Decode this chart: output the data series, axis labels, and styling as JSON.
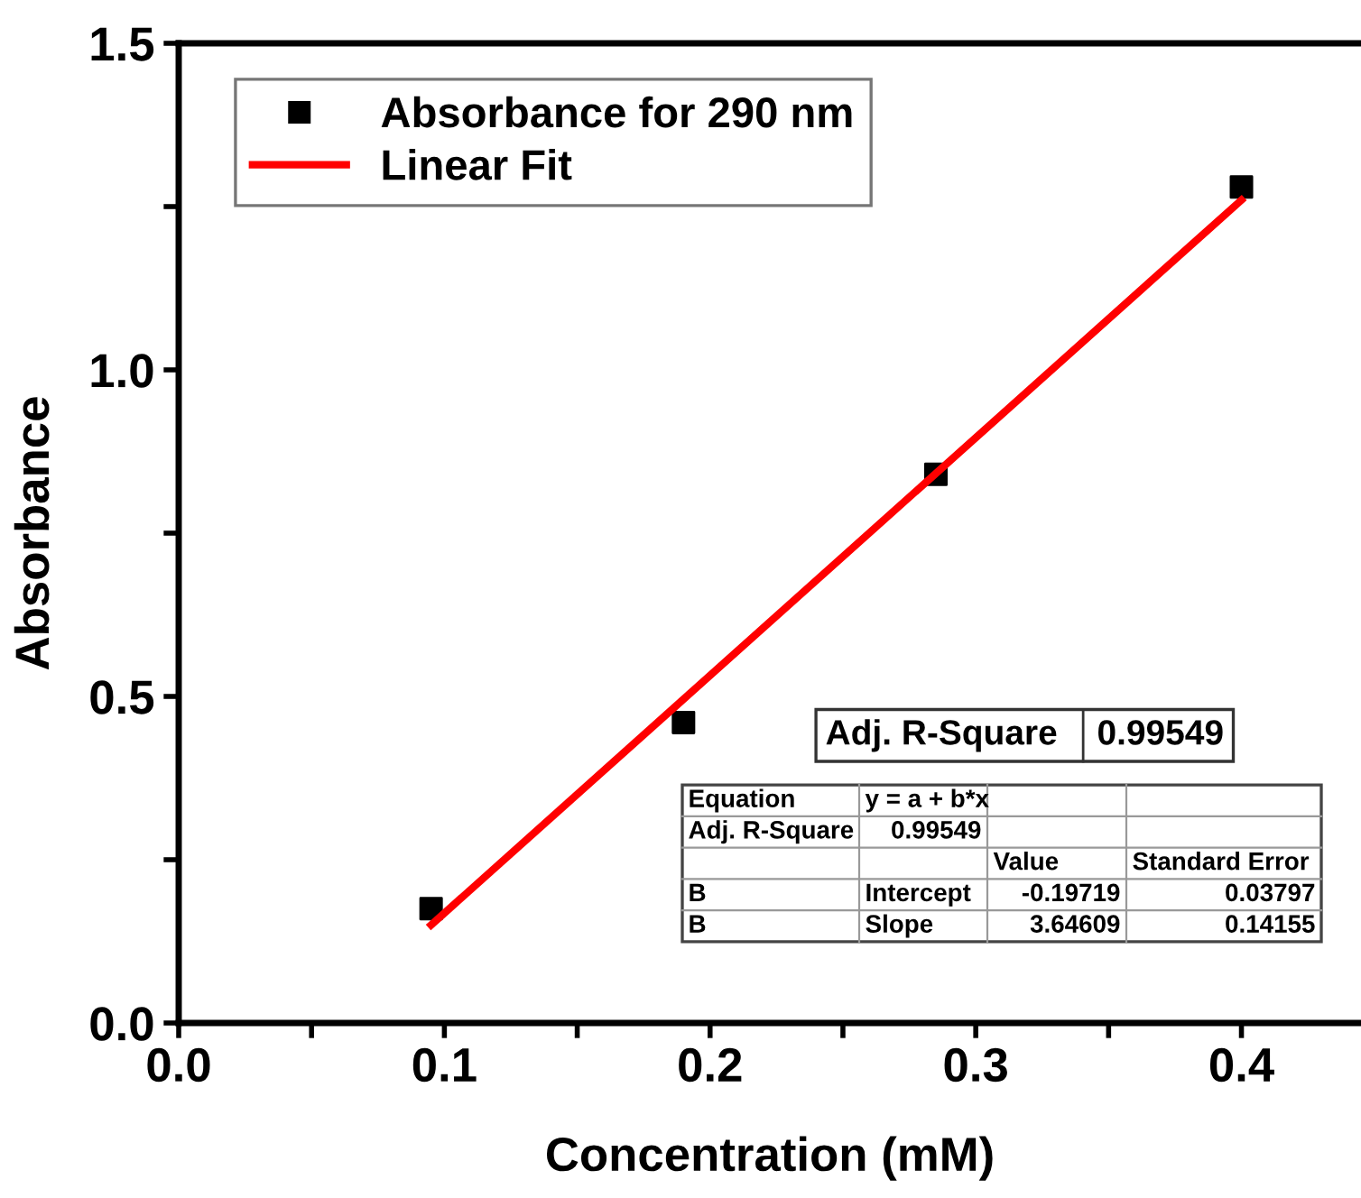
{
  "chart_data": {
    "type": "scatter",
    "xlabel": "Concentration (mM)",
    "ylabel": "Absorbance",
    "series": [
      {
        "name": "Absorbance for 290 nm",
        "color": "#000000",
        "marker": "square",
        "x": [
          0.095,
          0.19,
          0.285,
          0.4
        ],
        "values": [
          0.175,
          0.46,
          0.84,
          1.28
        ]
      },
      {
        "name": "Linear Fit",
        "type": "line",
        "color": "#ff0000",
        "marker": "none",
        "line_style": "solid",
        "x": [
          0.095,
          0.4
        ],
        "values": [
          0.15,
          1.26
        ]
      }
    ],
    "xlim": [
      0,
      0.445
    ],
    "ylim": [
      0,
      1.5
    ],
    "xticks": [
      {
        "value": 0,
        "label": "0.0"
      },
      {
        "value": 0.05,
        "label": null
      },
      0.1,
      {
        "value": 0.15,
        "label": null
      },
      0.2,
      {
        "value": 0.25,
        "label": null
      },
      0.3,
      {
        "value": 0.35,
        "label": null
      },
      0.4
    ],
    "yticks": [
      {
        "value": 0,
        "label": "0.0"
      },
      {
        "value": 0.25,
        "label": null
      },
      0.5,
      {
        "value": 0.75,
        "label": null
      },
      {
        "value": 1,
        "label": "1.0"
      },
      {
        "value": 1.25,
        "label": null
      },
      1.5
    ],
    "grid": false,
    "legend": "top left",
    "annotations": [
      "Adj. R-Square",
      "0.99549",
      "Equation",
      "y = a + b*x",
      "Adj. R-Square",
      "0.99549",
      "Value",
      "Standard Error",
      "B",
      "Intercept",
      "-0.19719",
      "0.03797",
      "B",
      "Slope",
      "3.64609",
      "0.14155"
    ]
  }
}
